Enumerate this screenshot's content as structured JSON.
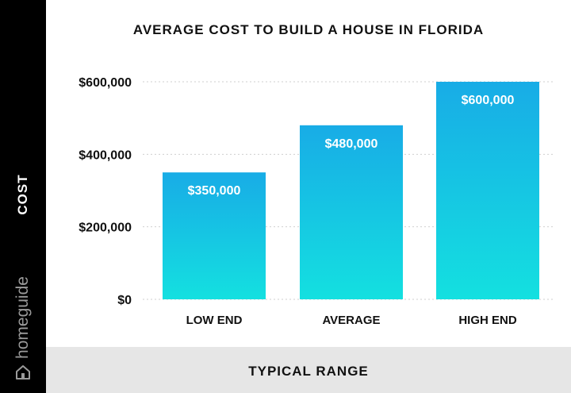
{
  "chart_data": {
    "type": "bar",
    "title": "AVERAGE COST TO BUILD A HOUSE IN FLORIDA",
    "xlabel": "TYPICAL RANGE",
    "ylabel": "COST",
    "categories": [
      "LOW END",
      "AVERAGE",
      "HIGH END"
    ],
    "values": [
      350000,
      480000,
      600000
    ],
    "data_labels": [
      "$350,000",
      "$480,000",
      "$600,000"
    ],
    "ylim": [
      0,
      600000
    ],
    "yticks": [
      0,
      200000,
      400000,
      600000
    ],
    "ytick_labels": [
      "$0",
      "$200,000",
      "$400,000",
      "$600,000"
    ],
    "grid": "horizontal dotted",
    "colors": {
      "bar_top": "#18ace6",
      "bar_bottom": "#14e0e0"
    }
  },
  "brand": {
    "name": "homeguide",
    "icon": "house-icon"
  },
  "colors": {
    "sidebar": "#000000",
    "footer": "#e6e6e6"
  }
}
